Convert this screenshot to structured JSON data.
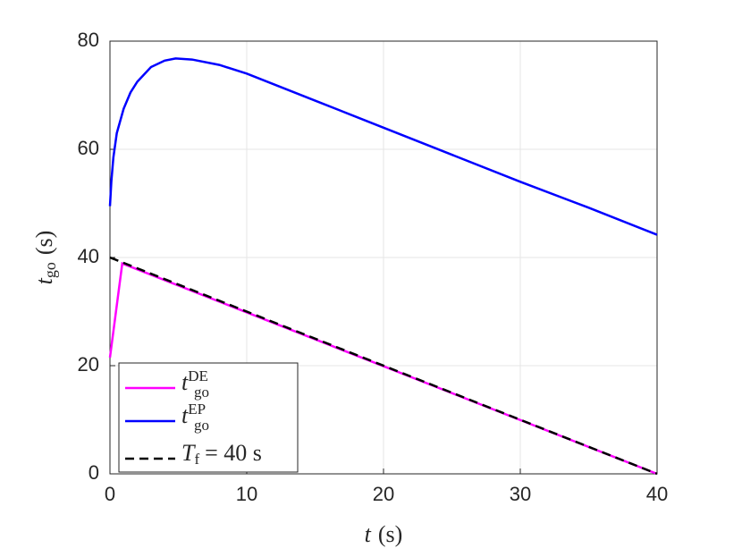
{
  "chart_data": {
    "type": "line",
    "xlabel": {
      "main": "t",
      "unit": "(s)"
    },
    "ylabel": {
      "main": "t",
      "sub": "go",
      "unit": "(s)"
    },
    "xlim": [
      0,
      40
    ],
    "ylim": [
      0,
      80
    ],
    "xticks": [
      0,
      10,
      20,
      30,
      40
    ],
    "yticks": [
      0,
      20,
      40,
      60,
      80
    ],
    "grid": true,
    "legend": "lower-left",
    "series": [
      {
        "name": "t",
        "name_sub": "go",
        "name_sup": "DE",
        "color": "#ff00ff",
        "dash": false,
        "x": [
          0,
          0.9,
          40
        ],
        "values": [
          21.5,
          38.9,
          0
        ]
      },
      {
        "name": "t",
        "name_sub": "go",
        "name_sup": "EP",
        "color": "#0000ff",
        "dash": false,
        "x": [
          0,
          0.1,
          0.25,
          0.5,
          1,
          1.5,
          2,
          3,
          4,
          4.8,
          6,
          8,
          10,
          15,
          20,
          25,
          30,
          35,
          40
        ],
        "values": [
          49.5,
          54,
          58.5,
          63,
          67.5,
          70.5,
          72.5,
          75.2,
          76.4,
          76.8,
          76.6,
          75.6,
          74,
          69,
          64,
          59,
          54,
          49.2,
          44.2
        ]
      },
      {
        "name": "T",
        "name_sub": "f",
        "name_rest": "= 40 s",
        "color": "#000000",
        "dash": true,
        "x": [
          0,
          40
        ],
        "values": [
          40,
          0
        ]
      }
    ]
  }
}
